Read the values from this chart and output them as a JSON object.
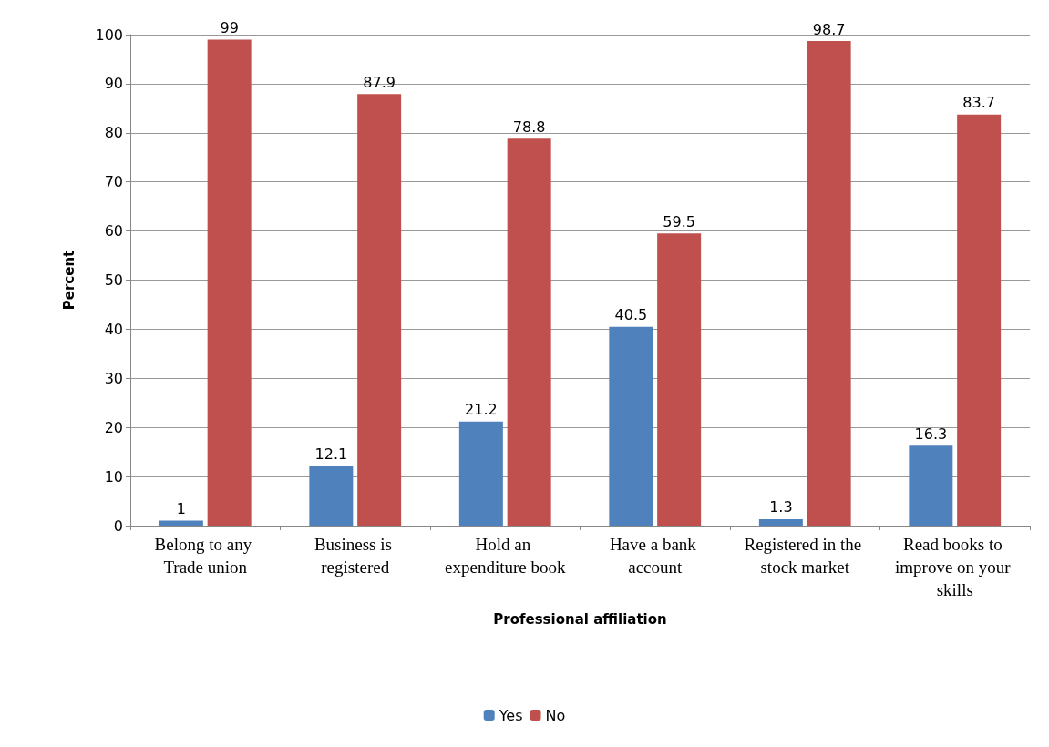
{
  "chart_data": {
    "type": "bar",
    "xlabel": "Professional affiliation",
    "ylabel": "Percent",
    "categories": [
      "Belong to any Trade union",
      "Business is registered",
      "Hold an expenditure book",
      "Have a bank account",
      "Registered in the stock market",
      "Read books to improve on your skills"
    ],
    "series": [
      {
        "name": "Yes",
        "color": "#4f81bd",
        "values": [
          1,
          12.1,
          21.2,
          40.5,
          1.3,
          16.3
        ]
      },
      {
        "name": "No",
        "color": "#c0504d",
        "values": [
          99,
          87.9,
          78.8,
          59.5,
          98.7,
          83.7
        ]
      }
    ],
    "ylim": [
      0,
      100
    ],
    "yticks": [
      0,
      10,
      20,
      30,
      40,
      50,
      60,
      70,
      80,
      90,
      100
    ],
    "grid": "y",
    "legend": "bottom",
    "data_labels": true
  }
}
